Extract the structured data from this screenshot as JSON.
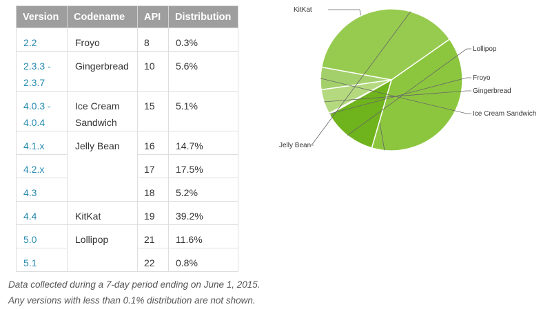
{
  "table": {
    "headers": [
      "Version",
      "Codename",
      "API",
      "Distribution"
    ],
    "rows": [
      {
        "version": "2.2",
        "codename": "Froyo",
        "api": "8",
        "distribution": "0.3%"
      },
      {
        "version": "2.3.3 - 2.3.7",
        "codename": "Gingerbread",
        "api": "10",
        "distribution": "5.6%"
      },
      {
        "version": "4.0.3 - 4.0.4",
        "codename": "Ice Cream Sandwich",
        "api": "15",
        "distribution": "5.1%"
      },
      {
        "version": "4.1.x",
        "codename": "Jelly Bean",
        "api": "16",
        "distribution": "14.7%"
      },
      {
        "version": "4.2.x",
        "codename": "",
        "api": "17",
        "distribution": "17.5%"
      },
      {
        "version": "4.3",
        "codename": "",
        "api": "18",
        "distribution": "5.2%"
      },
      {
        "version": "4.4",
        "codename": "KitKat",
        "api": "19",
        "distribution": "39.2%"
      },
      {
        "version": "5.0",
        "codename": "Lollipop",
        "api": "21",
        "distribution": "11.6%"
      },
      {
        "version": "5.1",
        "codename": "",
        "api": "22",
        "distribution": "0.8%"
      }
    ]
  },
  "footnote": {
    "line1": "Data collected during a 7-day period ending on June 1, 2015.",
    "line2": "Any versions with less than 0.1% distribution are not shown."
  },
  "chart_data": {
    "type": "pie",
    "slices": [
      {
        "label": "KitKat",
        "value": 39.2,
        "color": "#8cc63f"
      },
      {
        "label": "Lollipop",
        "value": 12.4,
        "color": "#6fb31d"
      },
      {
        "label": "Froyo",
        "value": 0.3,
        "color": "#c5e099"
      },
      {
        "label": "Gingerbread",
        "value": 5.6,
        "color": "#b4d97f"
      },
      {
        "label": "Ice Cream Sandwich",
        "value": 5.1,
        "color": "#a3d06b"
      },
      {
        "label": "Jelly Bean",
        "value": 37.4,
        "color": "#97cb4f"
      }
    ],
    "start_angle_deg": -35,
    "direction": "clockwise",
    "legend": "callout labels"
  }
}
